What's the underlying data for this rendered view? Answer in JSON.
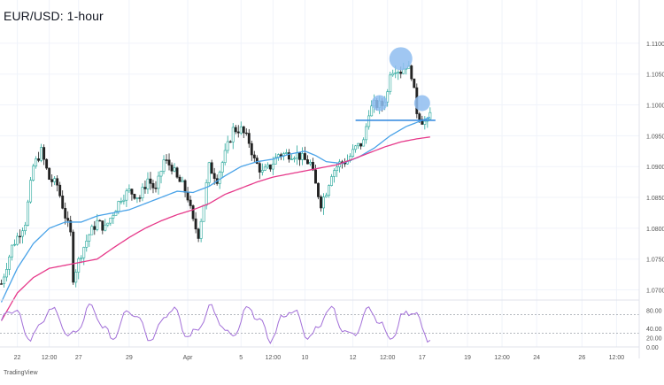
{
  "chart_data": {
    "type": "candlestick",
    "title": "EUR/USD: 1-hour",
    "brand": "TradingView",
    "price_axis": {
      "ticks": [
        "1.11000",
        "1.10500",
        "1.10000",
        "1.09500",
        "1.09000",
        "1.08500",
        "1.08000",
        "1.07500",
        "1.07000"
      ],
      "ylim": [
        1.0685,
        1.113
      ]
    },
    "indicator_axis": {
      "ticks": [
        "80.00",
        "40.00",
        "20.00",
        "0.00"
      ],
      "ylim": [
        0,
        100
      ],
      "levels": [
        70,
        30
      ]
    },
    "x_ticks": [
      {
        "label": "22",
        "bar": 6
      },
      {
        "label": "12:00",
        "bar": 18
      },
      {
        "label": "27",
        "bar": 29
      },
      {
        "label": "29",
        "bar": 48
      },
      {
        "label": "Apr",
        "bar": 70
      },
      {
        "label": "5",
        "bar": 90
      },
      {
        "label": "12:00",
        "bar": 102
      },
      {
        "label": "10",
        "bar": 114
      },
      {
        "label": "12",
        "bar": 132
      },
      {
        "label": "12:00",
        "bar": 145
      },
      {
        "label": "17",
        "bar": 158
      },
      {
        "label": "19",
        "bar": 175
      },
      {
        "label": "12:00",
        "bar": 188
      },
      {
        "label": "24",
        "bar": 201
      },
      {
        "label": "26",
        "bar": 218
      },
      {
        "label": "12:00",
        "bar": 231
      }
    ],
    "price_path": [
      [
        0,
        1.071
      ],
      [
        4,
        1.077
      ],
      [
        9,
        1.081
      ],
      [
        12,
        1.09
      ],
      [
        15,
        1.0925
      ],
      [
        18,
        1.088
      ],
      [
        21,
        1.087
      ],
      [
        24,
        1.082
      ],
      [
        26,
        1.079
      ],
      [
        27,
        1.072
      ],
      [
        30,
        1.076
      ],
      [
        33,
        1.079
      ],
      [
        36,
        1.081
      ],
      [
        39,
        1.08
      ],
      [
        42,
        1.0825
      ],
      [
        45,
        1.085
      ],
      [
        48,
        1.086
      ],
      [
        52,
        1.085
      ],
      [
        55,
        1.088
      ],
      [
        58,
        1.086
      ],
      [
        61,
        1.091
      ],
      [
        64,
        1.09
      ],
      [
        66,
        1.088
      ],
      [
        68,
        1.087
      ],
      [
        70,
        1.085
      ],
      [
        72,
        1.081
      ],
      [
        74,
        1.079
      ],
      [
        76,
        1.084
      ],
      [
        78,
        1.09
      ],
      [
        81,
        1.088
      ],
      [
        84,
        1.092
      ],
      [
        87,
        1.096
      ],
      [
        90,
        1.096
      ],
      [
        93,
        1.094
      ],
      [
        95,
        1.091
      ],
      [
        98,
        1.089
      ],
      [
        101,
        1.09
      ],
      [
        104,
        1.092
      ],
      [
        108,
        1.092
      ],
      [
        111,
        1.092
      ],
      [
        114,
        1.091
      ],
      [
        116,
        1.0905
      ],
      [
        118,
        1.087
      ],
      [
        120,
        1.084
      ],
      [
        122,
        1.086
      ],
      [
        124,
        1.089
      ],
      [
        127,
        1.0905
      ],
      [
        130,
        1.091
      ],
      [
        133,
        1.093
      ],
      [
        136,
        1.094
      ],
      [
        138,
        1.099
      ],
      [
        140,
        1.1
      ],
      [
        143,
        1.1
      ],
      [
        145,
        1.102
      ],
      [
        146,
        1.1055
      ],
      [
        148,
        1.106
      ],
      [
        150,
        1.1055
      ],
      [
        152,
        1.1065
      ],
      [
        154,
        1.105
      ],
      [
        156,
        1.099
      ],
      [
        158,
        1.0975
      ],
      [
        160,
        1.097
      ],
      [
        161,
        1.0985
      ]
    ],
    "ma_fast": [
      [
        0,
        1.068
      ],
      [
        6,
        1.0735
      ],
      [
        12,
        1.0775
      ],
      [
        18,
        1.08
      ],
      [
        24,
        1.081
      ],
      [
        30,
        1.081
      ],
      [
        36,
        1.082
      ],
      [
        42,
        1.0825
      ],
      [
        48,
        1.083
      ],
      [
        54,
        1.084
      ],
      [
        60,
        1.085
      ],
      [
        66,
        1.086
      ],
      [
        72,
        1.0858
      ],
      [
        78,
        1.0868
      ],
      [
        84,
        1.0885
      ],
      [
        90,
        1.09
      ],
      [
        96,
        1.0908
      ],
      [
        102,
        1.0912
      ],
      [
        108,
        1.092
      ],
      [
        114,
        1.0925
      ],
      [
        118,
        1.0918
      ],
      [
        122,
        1.0908
      ],
      [
        128,
        1.0905
      ],
      [
        134,
        1.0915
      ],
      [
        140,
        1.093
      ],
      [
        146,
        1.095
      ],
      [
        152,
        1.0965
      ],
      [
        158,
        1.0975
      ],
      [
        161,
        1.098
      ]
    ],
    "ma_slow": [
      [
        0,
        1.065
      ],
      [
        6,
        1.0695
      ],
      [
        12,
        1.072
      ],
      [
        18,
        1.0735
      ],
      [
        24,
        1.074
      ],
      [
        30,
        1.0745
      ],
      [
        36,
        1.075
      ],
      [
        42,
        1.0768
      ],
      [
        48,
        1.0785
      ],
      [
        54,
        1.08
      ],
      [
        60,
        1.0812
      ],
      [
        66,
        1.0822
      ],
      [
        72,
        1.083
      ],
      [
        78,
        1.084
      ],
      [
        84,
        1.0855
      ],
      [
        90,
        1.0865
      ],
      [
        96,
        1.0875
      ],
      [
        102,
        1.0883
      ],
      [
        108,
        1.0888
      ],
      [
        114,
        1.0893
      ],
      [
        120,
        1.0898
      ],
      [
        126,
        1.0903
      ],
      [
        132,
        1.0912
      ],
      [
        138,
        1.0922
      ],
      [
        144,
        1.0932
      ],
      [
        150,
        1.094
      ],
      [
        156,
        1.0945
      ],
      [
        161,
        1.0948
      ]
    ],
    "neckline": {
      "value": 1.0975,
      "from_bar": 133,
      "to_bar": 163
    },
    "pattern_markers": [
      {
        "bar": 142,
        "price": 1.1003
      },
      {
        "bar": 150,
        "price": 1.1075
      },
      {
        "bar": 158,
        "price": 1.1003
      }
    ]
  },
  "colors": {
    "bull": "#26a69a",
    "bear": "#222222",
    "ma_fast": "#4aa3e8",
    "ma_slow": "#e6398a",
    "oscillator": "#a26fd8",
    "neckline": "#3d8fe0",
    "marker": "#8fbdf0",
    "grid": "#f0f3fa",
    "axis_text": "#555555"
  }
}
